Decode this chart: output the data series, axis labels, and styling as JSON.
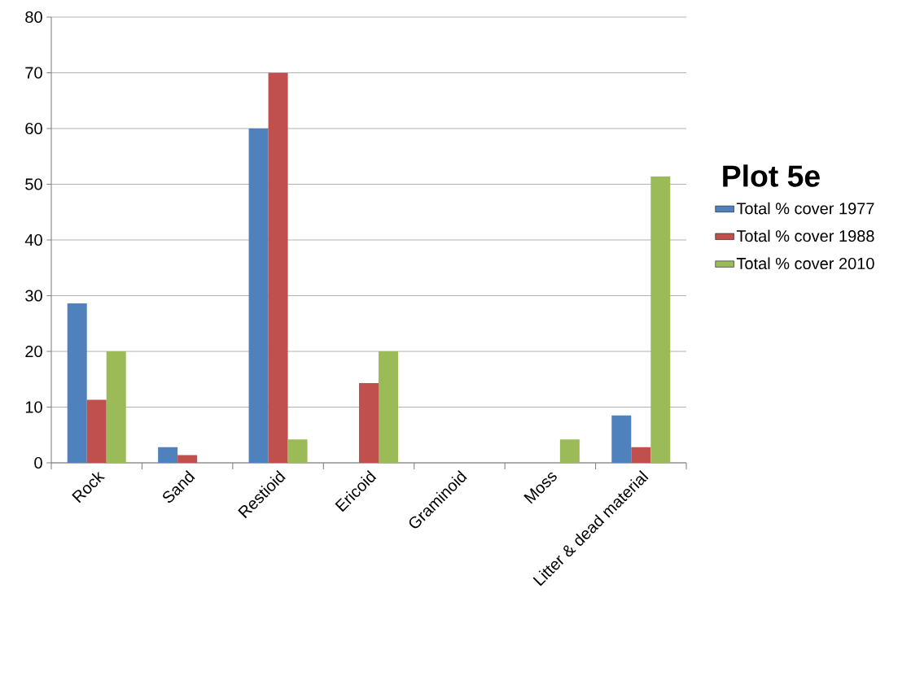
{
  "chart_data": {
    "type": "bar",
    "legend_title": "Plot 5e",
    "categories": [
      "Rock",
      "Sand",
      "Restioid",
      "Ericoid",
      "Graminoid",
      "Moss",
      "Litter & dead material"
    ],
    "series": [
      {
        "name": "Total  % cover 1977",
        "color": "#4f81bd",
        "values": [
          28.6,
          2.8,
          60,
          0,
          0,
          0,
          8.5
        ]
      },
      {
        "name": "Total % cover 1988",
        "color": "#c0504d",
        "values": [
          11.3,
          1.4,
          70,
          14.3,
          0,
          0,
          2.8
        ]
      },
      {
        "name": "Total % cover 2010",
        "color": "#9bbb59",
        "values": [
          20,
          0,
          4.2,
          20,
          0,
          4.2,
          51.4
        ]
      }
    ],
    "ylim": [
      0,
      80
    ],
    "yticks": [
      0,
      10,
      20,
      30,
      40,
      50,
      60,
      70,
      80
    ],
    "grid": "y",
    "legend": "right"
  }
}
